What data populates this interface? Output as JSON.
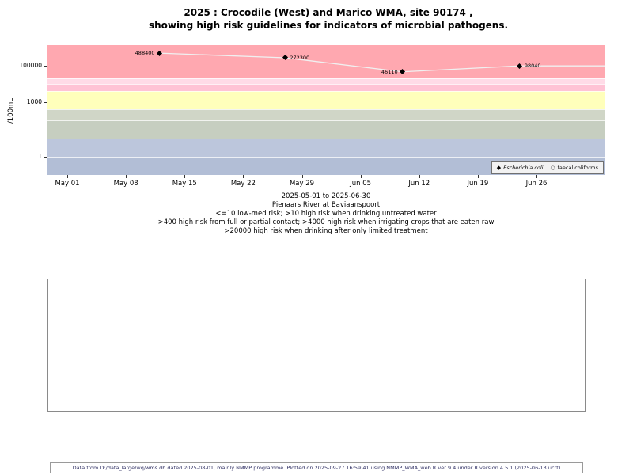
{
  "title": {
    "line1": "2025 : Crocodile (West) and Marico WMA, site 90174 ,",
    "line2": "showing high risk guidelines for indicators of microbial pathogens."
  },
  "chart_data": {
    "type": "scatter",
    "title": "2025 : Crocodile (West) and Marico WMA, site 90174 , showing high risk guidelines for indicators of microbial pathogens.",
    "ylabel": "/100mL",
    "y_scale": "log",
    "y_range": [
      0.1,
      1300000
    ],
    "x_range": [
      "2025-05-01",
      "2025-06-30"
    ],
    "y_ticks": [
      {
        "value": 100000,
        "label": "100000"
      },
      {
        "value": 1000,
        "label": "1000"
      },
      {
        "value": 1,
        "label": "1"
      }
    ],
    "x_ticks": [
      {
        "date": "2025-05-01",
        "label": "May 01"
      },
      {
        "date": "2025-05-08",
        "label": "May 08"
      },
      {
        "date": "2025-05-15",
        "label": "May 15"
      },
      {
        "date": "2025-05-22",
        "label": "May 22"
      },
      {
        "date": "2025-05-29",
        "label": "May 29"
      },
      {
        "date": "2025-06-05",
        "label": "Jun 05"
      },
      {
        "date": "2025-06-12",
        "label": "Jun 12"
      },
      {
        "date": "2025-06-19",
        "label": "Jun 19"
      },
      {
        "date": "2025-06-26",
        "label": "Jun 26"
      }
    ],
    "risk_bands": [
      {
        "from": 20000,
        "to": 2000000,
        "color": "#ffa8b0"
      },
      {
        "from": 10000,
        "to": 20000,
        "color": "#ffdbe7"
      },
      {
        "from": 4000,
        "to": 10000,
        "color": "#ffc3d5"
      },
      {
        "from": 400,
        "to": 4000,
        "color": "#ffffbb"
      },
      {
        "from": 100,
        "to": 400,
        "color": "#d0d6c7"
      },
      {
        "from": 10,
        "to": 100,
        "color": "#c6cec0"
      },
      {
        "from": 1,
        "to": 10,
        "color": "#bcc6dc"
      },
      {
        "from": 0.1,
        "to": 1,
        "color": "#b2bed6"
      }
    ],
    "series": [
      {
        "name": "Escherichia coli",
        "marker": "filled-diamond",
        "color": "#000000",
        "line_color": "#f0f0f0",
        "points": [
          {
            "date": "2025-05-12",
            "value": 488400,
            "label": "488400",
            "label_side": "left"
          },
          {
            "date": "2025-05-27",
            "value": 272300,
            "label": "272300",
            "label_side": "right"
          },
          {
            "date": "2025-06-10",
            "value": 46110,
            "label": "46110",
            "label_side": "left"
          },
          {
            "date": "2025-06-24",
            "value": 98040,
            "label": "98040",
            "label_side": "right"
          }
        ]
      },
      {
        "name": "faecal coliforms",
        "marker": "open-circle",
        "color": "#555555",
        "points": []
      }
    ]
  },
  "legend": {
    "items": [
      {
        "marker": "filled-diamond",
        "label": "Escherichia coli"
      },
      {
        "marker": "open-circle",
        "label": "faecal coliforms"
      }
    ]
  },
  "caption": {
    "date_range": "2025-05-01 to 2025-06-30",
    "station": "Pienaars River at Baviaanspoort",
    "guideline1": "<=10 low-med risk; >10 high risk when drinking untreated water",
    "guideline2": ">400 high risk from full or partial contact; >4000 high risk when irrigating crops that are eaten raw",
    "guideline3": ">20000 high risk when drinking after only limited treatment"
  },
  "footer": {
    "text": "Data from D:/data_large/wq/wms.db dated 2025-08-01, mainly NMMP programme. Plotted on 2025-09-27 16:59:41 using NMMP_WMA_web.R ver 9.4 under R version 4.5.1 (2025-06-13 ucrt)"
  }
}
